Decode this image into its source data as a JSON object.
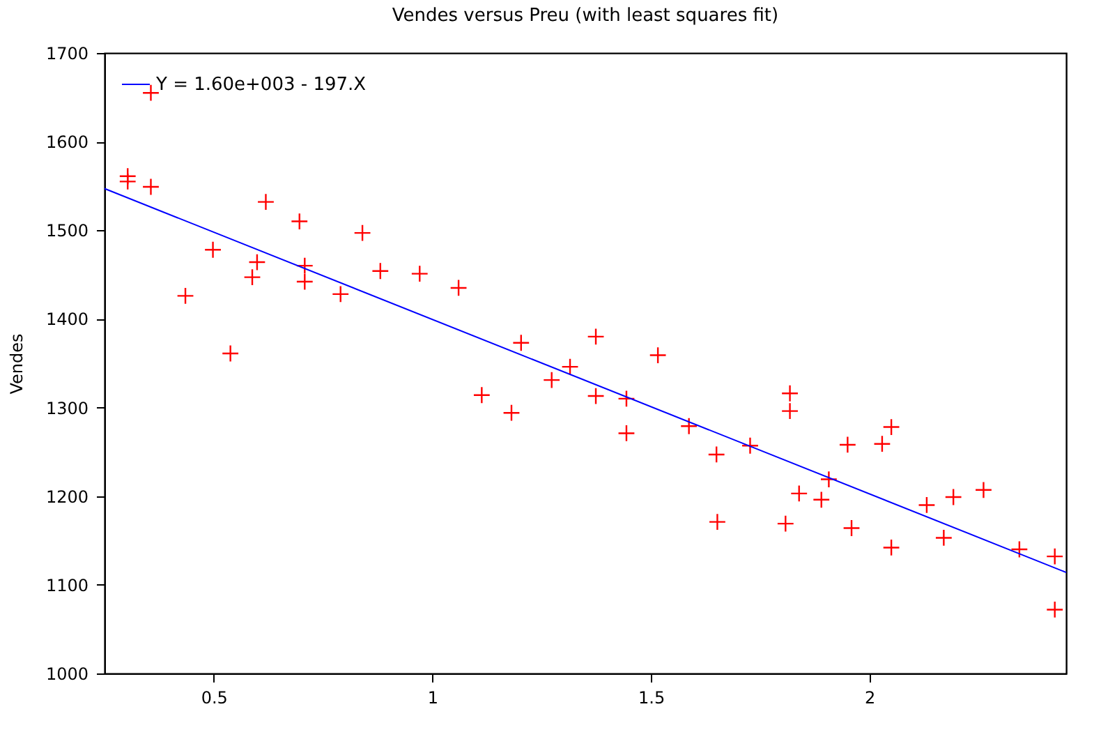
{
  "chart_data": {
    "type": "scatter",
    "title": "Vendes versus Preu (with least squares fit)",
    "ylabel": "Vendes",
    "xlim": [
      0.25,
      2.45
    ],
    "ylim": [
      1000,
      1700
    ],
    "xticks": [
      0.5,
      1,
      1.5,
      2
    ],
    "yticks": [
      1000,
      1100,
      1200,
      1300,
      1400,
      1500,
      1600,
      1700
    ],
    "grid": false,
    "legend": "top left",
    "series": [
      {
        "marker": "cross",
        "color": "#ff0000",
        "x": [
          0.303,
          0.303,
          0.356,
          0.356,
          0.435,
          0.498,
          0.538,
          0.588,
          0.599,
          0.619,
          0.696,
          0.708,
          0.708,
          0.79,
          0.84,
          0.881,
          0.971,
          1.06,
          1.113,
          1.181,
          1.203,
          1.273,
          1.315,
          1.374,
          1.374,
          1.444,
          1.444,
          1.516,
          1.587,
          1.65,
          1.652,
          1.727,
          1.808,
          1.818,
          1.818,
          1.839,
          1.89,
          1.907,
          1.95,
          1.959,
          2.029,
          2.05,
          2.05,
          2.131,
          2.17,
          2.192,
          2.261,
          2.343,
          2.424,
          2.424
        ],
        "values": [
          1561,
          1555,
          1655,
          1549,
          1426,
          1478,
          1361,
          1447,
          1464,
          1532,
          1510,
          1460,
          1442,
          1428,
          1497,
          1454,
          1451,
          1435,
          1314,
          1294,
          1373,
          1331,
          1346,
          1380,
          1313,
          1310,
          1271,
          1359,
          1279,
          1247,
          1171,
          1257,
          1169,
          1316,
          1296,
          1203,
          1196,
          1219,
          1258,
          1164,
          1259,
          1278,
          1142,
          1190,
          1153,
          1199,
          1207,
          1140,
          1132,
          1072
        ]
      },
      {
        "type": "line",
        "name": "Y = 1.60e+003 - 197.X",
        "color": "#0000ff",
        "x": [
          0.25,
          2.45
        ],
        "values": [
          1547,
          1114
        ]
      }
    ]
  }
}
